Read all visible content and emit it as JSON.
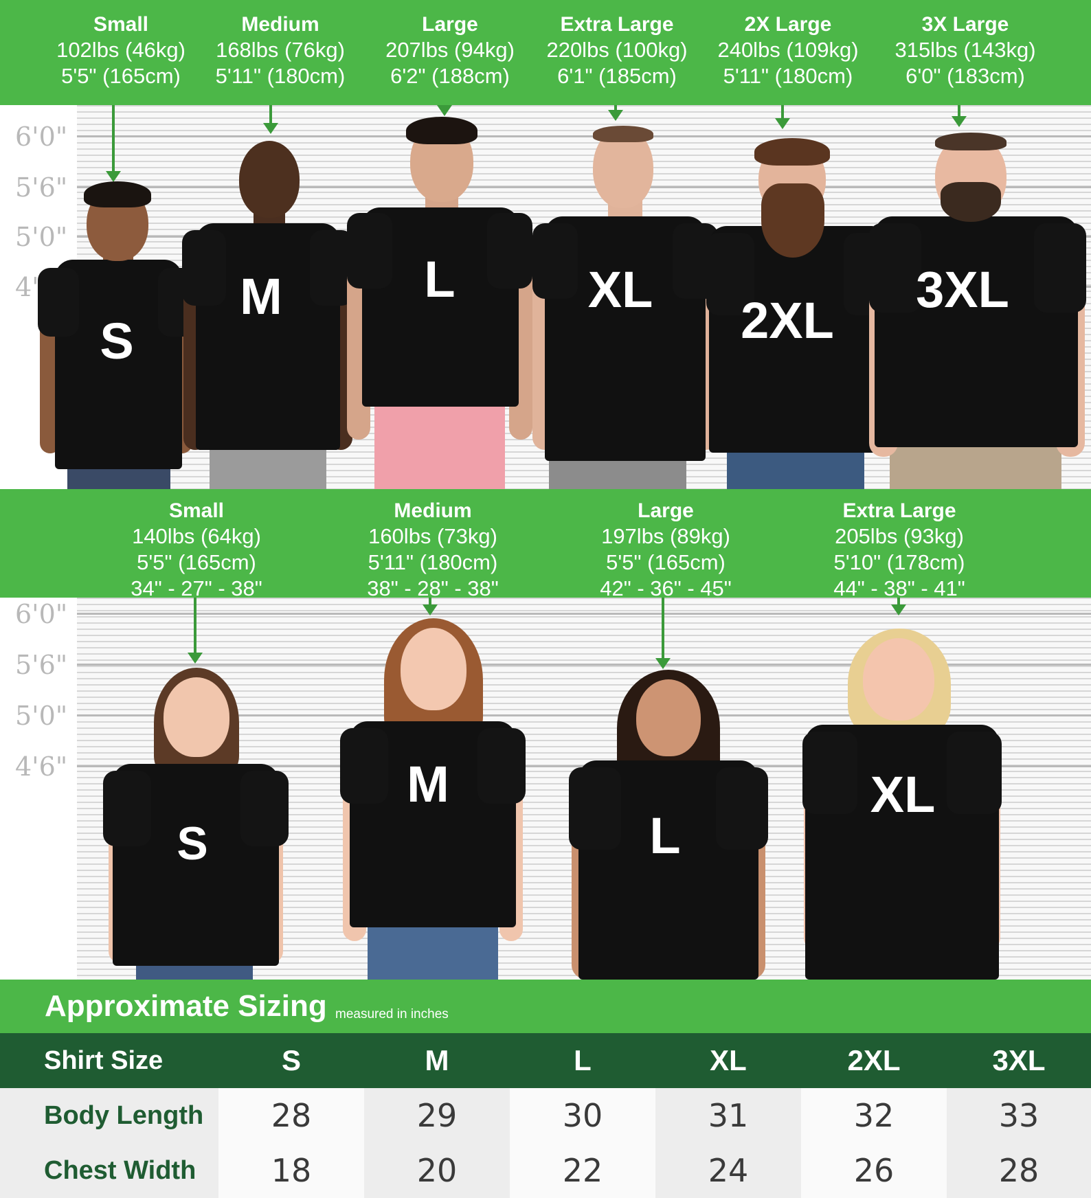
{
  "men": [
    {
      "name": "Small",
      "weight": "102lbs (46kg)",
      "height": "5'5\" (165cm)",
      "letter": "S"
    },
    {
      "name": "Medium",
      "weight": "168lbs (76kg)",
      "height": "5'11\" (180cm)",
      "letter": "M"
    },
    {
      "name": "Large",
      "weight": "207lbs (94kg)",
      "height": "6'2\" (188cm)",
      "letter": "L"
    },
    {
      "name": "Extra Large",
      "weight": "220lbs (100kg)",
      "height": "6'1\" (185cm)",
      "letter": "XL"
    },
    {
      "name": "2X Large",
      "weight": "240lbs (109kg)",
      "height": "5'11\" (180cm)",
      "letter": "2XL"
    },
    {
      "name": "3X Large",
      "weight": "315lbs (143kg)",
      "height": "6'0\" (183cm)",
      "letter": "3XL"
    }
  ],
  "women": [
    {
      "name": "Small",
      "weight": "140lbs (64kg)",
      "height": "5'5\" (165cm)",
      "measurements": "34\" - 27\" - 38\"",
      "letter": "S"
    },
    {
      "name": "Medium",
      "weight": "160lbs (73kg)",
      "height": "5'11\" (180cm)",
      "measurements": "38\" - 28\" - 38\"",
      "letter": "M"
    },
    {
      "name": "Large",
      "weight": "197lbs (89kg)",
      "height": "5'5\" (165cm)",
      "measurements": "42\" - 36\" - 45\"",
      "letter": "L"
    },
    {
      "name": "Extra Large",
      "weight": "205lbs (93kg)",
      "height": "5'10\" (178cm)",
      "measurements": "44\" - 38\" - 41\"",
      "letter": "XL"
    }
  ],
  "height_marks": [
    "6'0\"",
    "5'6\"",
    "5'0\"",
    "4'6\""
  ],
  "sizing": {
    "title": "Approximate Sizing",
    "subtitle": "measured in inches",
    "header_label": "Shirt Size",
    "sizes": [
      "S",
      "M",
      "L",
      "XL",
      "2XL",
      "3XL"
    ],
    "rows": [
      {
        "label": "Body Length",
        "values": [
          "28",
          "29",
          "30",
          "31",
          "32",
          "33"
        ]
      },
      {
        "label": "Chest Width",
        "values": [
          "18",
          "20",
          "22",
          "24",
          "26",
          "28"
        ]
      }
    ]
  },
  "colors": {
    "band_green": "#4cb748",
    "table_header": "#1f5c32",
    "shirt": "#111111"
  }
}
